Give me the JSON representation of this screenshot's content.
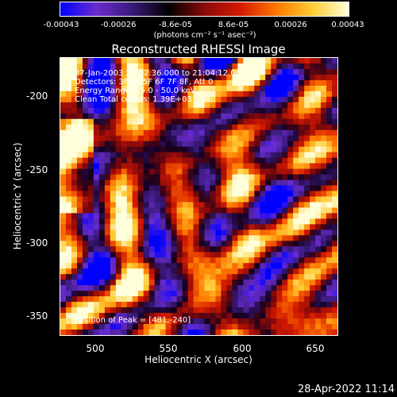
{
  "colorbar": {
    "tick_labels": [
      "-0.00043",
      "-0.00026",
      "-8.6e-05",
      "8.6e-05",
      "0.00026",
      "0.00043"
    ],
    "units": "(photons cm⁻² s⁻¹ asec⁻²)",
    "colors": [
      "#0000ff",
      "#6a2ccf",
      "#3a1a7a",
      "#000000",
      "#8a0a0a",
      "#d41a00",
      "#ff7700",
      "#ffcc33",
      "#ffffdd"
    ]
  },
  "title": "Reconstructed RHESSI Image",
  "info": {
    "time_range": "27-Jan-2003 21:02:36.000 to 21:04:12.000",
    "detectors": "Detectors: 3F 4F 5F 6F 7F 8F, Att 0",
    "energy": "Energy Range: 25.0 - 50.0 keV",
    "clean": "Clean    Total counts: 1.39E+03",
    "peak": "Position of Peak = [481,-240]"
  },
  "axes": {
    "xlabel": "Heliocentric X (arcsec)",
    "ylabel": "Heliocentric Y (arcsec)",
    "x_ticks": [
      "500",
      "550",
      "600",
      "650"
    ],
    "y_ticks": [
      "-200",
      "-250",
      "-300",
      "-350"
    ],
    "x_range": [
      476,
      666
    ],
    "y_range": [
      -370,
      -180
    ]
  },
  "timestamp": "28-Apr-2022 11:14"
}
